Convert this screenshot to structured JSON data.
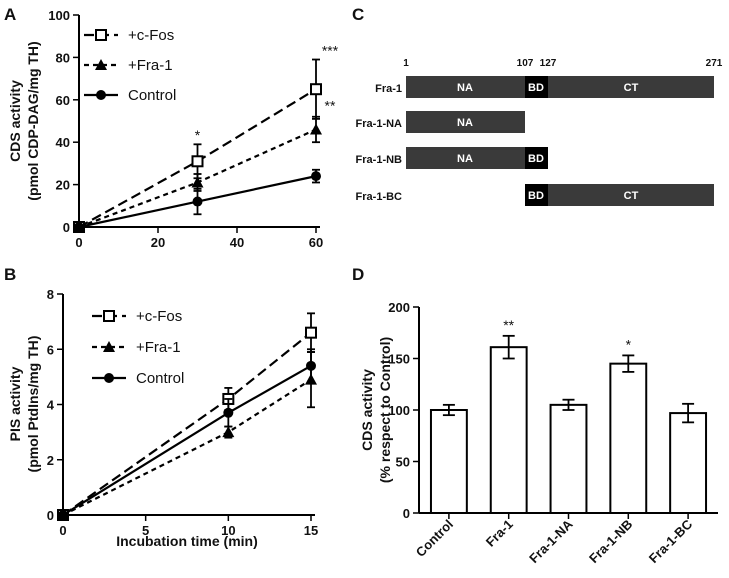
{
  "chart_data": [
    {
      "panel": "A",
      "type": "line",
      "ylabel": [
        "CDS activity",
        "(pmol CDP-DAG/mg TH)"
      ],
      "xlabel": "",
      "xlim": [
        0,
        60
      ],
      "ylim": [
        0,
        100
      ],
      "xticks": [
        0,
        20,
        40,
        60
      ],
      "yticks": [
        0,
        20,
        40,
        60,
        80,
        100
      ],
      "series": [
        {
          "name": "+c-Fos",
          "style": "long-dash",
          "marker": "open-square",
          "x": [
            0,
            30,
            60
          ],
          "y": [
            0,
            31,
            65
          ],
          "err": [
            0,
            8,
            14
          ]
        },
        {
          "name": "+Fra-1",
          "style": "short-dash",
          "marker": "triangle",
          "x": [
            0,
            30,
            60
          ],
          "y": [
            0,
            21,
            46
          ],
          "err": [
            0,
            4,
            6
          ]
        },
        {
          "name": "Control",
          "style": "solid",
          "marker": "circle",
          "x": [
            0,
            30,
            60
          ],
          "y": [
            0,
            12,
            24
          ],
          "err": [
            0,
            6,
            3
          ]
        }
      ],
      "annotations": [
        {
          "text": "*",
          "x": 30,
          "y": 41
        },
        {
          "text": "***",
          "x": 60,
          "y": 81
        },
        {
          "text": "**",
          "x": 60,
          "y": 55
        }
      ]
    },
    {
      "panel": "B",
      "type": "line",
      "ylabel": [
        "PIS activity",
        "(pmol PtdIns/mg TH)"
      ],
      "xlabel": "Incubation time (min)",
      "xlim": [
        0,
        15
      ],
      "ylim": [
        0,
        8
      ],
      "xticks": [
        0,
        5,
        10,
        15
      ],
      "yticks": [
        0,
        2,
        4,
        6,
        8
      ],
      "series": [
        {
          "name": "+c-Fos",
          "style": "long-dash",
          "marker": "open-square",
          "x": [
            0,
            10,
            15
          ],
          "y": [
            0,
            4.2,
            6.6
          ],
          "err": [
            0,
            0.4,
            0.7
          ]
        },
        {
          "name": "+Fra-1",
          "style": "short-dash",
          "marker": "triangle",
          "x": [
            0,
            10,
            15
          ],
          "y": [
            0,
            3.0,
            4.9
          ],
          "err": [
            0,
            0.2,
            1.0
          ]
        },
        {
          "name": "Control",
          "style": "solid",
          "marker": "circle",
          "x": [
            0,
            10,
            15
          ],
          "y": [
            0,
            3.7,
            5.4
          ],
          "err": [
            0,
            0.5,
            0.6
          ]
        }
      ]
    },
    {
      "panel": "D",
      "type": "bar",
      "ylabel": [
        "CDS activity",
        "(% respect to Control)"
      ],
      "categories": [
        "Control",
        "Fra-1",
        "Fra-1-NA",
        "Fra-1-NB",
        "Fra-1-BC"
      ],
      "values": [
        100,
        161,
        105,
        145,
        97
      ],
      "errors": [
        5,
        11,
        5,
        8,
        9
      ],
      "ylim": [
        0,
        200
      ],
      "yticks": [
        0,
        50,
        100,
        150,
        200
      ],
      "annotations": [
        "",
        "**",
        "",
        "*",
        ""
      ]
    }
  ],
  "panels": {
    "a": "A",
    "b": "B",
    "c": "C",
    "d": "D"
  },
  "diagram": {
    "positions": {
      "p1": "1",
      "p107": "107",
      "p127": "127",
      "p271": "271"
    },
    "rows": [
      {
        "label": "Fra-1",
        "domains": [
          "NA",
          "BD",
          "CT"
        ]
      },
      {
        "label": "Fra-1-NA",
        "domains": [
          "NA"
        ]
      },
      {
        "label": "Fra-1-NB",
        "domains": [
          "NA",
          "BD"
        ]
      },
      {
        "label": "Fra-1-BC",
        "domains": [
          "BD",
          "CT"
        ]
      }
    ]
  },
  "colors": {
    "domain": "#3a3a3a",
    "binding": "#000000",
    "axis": "#000000"
  }
}
